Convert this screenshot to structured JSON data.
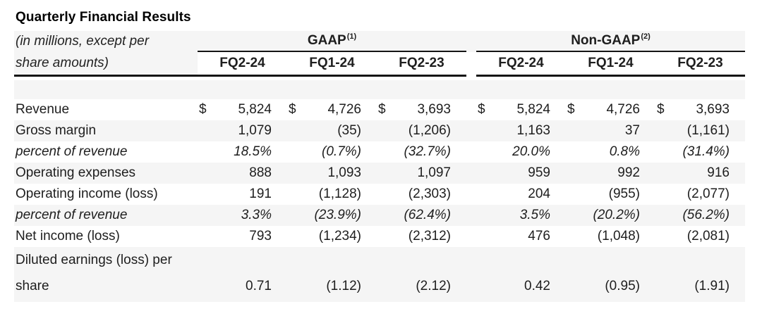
{
  "title": "Quarterly Financial Results",
  "unit_note": {
    "line1": "(in millions, except per",
    "line2": "share amounts)"
  },
  "table": {
    "currency_symbol": "$",
    "groups": [
      {
        "label": "GAAP",
        "superscript": "(1)",
        "columns": [
          "FQ2-24",
          "FQ1-24",
          "FQ2-23"
        ]
      },
      {
        "label": "Non-GAAP",
        "superscript": "(2)",
        "columns": [
          "FQ2-24",
          "FQ1-24",
          "FQ2-23"
        ]
      }
    ],
    "rows": [
      {
        "label": "Revenue",
        "dollar_sign": true,
        "shaded": false,
        "italic": false,
        "values": [
          "5,824",
          "4,726",
          "3,693",
          "5,824",
          "4,726",
          "3,693"
        ]
      },
      {
        "label": "Gross margin",
        "dollar_sign": false,
        "shaded": true,
        "italic": false,
        "values": [
          "1,079",
          "(35)",
          "(1,206)",
          "1,163",
          "37",
          "(1,161)"
        ]
      },
      {
        "label": "percent of revenue",
        "dollar_sign": false,
        "shaded": false,
        "italic": true,
        "values": [
          "18.5%",
          "(0.7%)",
          "(32.7%)",
          "20.0%",
          "0.8%",
          "(31.4%)"
        ]
      },
      {
        "label": "Operating expenses",
        "dollar_sign": false,
        "shaded": true,
        "italic": false,
        "values": [
          "888",
          "1,093",
          "1,097",
          "959",
          "992",
          "916"
        ]
      },
      {
        "label": "Operating income (loss)",
        "dollar_sign": false,
        "shaded": false,
        "italic": false,
        "values": [
          "191",
          "(1,128)",
          "(2,303)",
          "204",
          "(955)",
          "(2,077)"
        ]
      },
      {
        "label": "percent of revenue",
        "dollar_sign": false,
        "shaded": true,
        "italic": true,
        "values": [
          "3.3%",
          "(23.9%)",
          "(62.4%)",
          "3.5%",
          "(20.2%)",
          "(56.2%)"
        ]
      },
      {
        "label": "Net income (loss)",
        "dollar_sign": false,
        "shaded": false,
        "italic": false,
        "values": [
          "793",
          "(1,234)",
          "(2,312)",
          "476",
          "(1,048)",
          "(2,081)"
        ]
      },
      {
        "label_lines": [
          "Diluted earnings (loss) per",
          "share"
        ],
        "dollar_sign": false,
        "shaded": true,
        "italic": false,
        "values": [
          "0.71",
          "(1.12)",
          "(2.12)",
          "0.42",
          "(0.95)",
          "(1.91)"
        ]
      }
    ],
    "colors": {
      "background": "#ffffff",
      "stripe": "#f5f5f5",
      "text": "#1e1e1e",
      "rule": "#141414"
    }
  }
}
